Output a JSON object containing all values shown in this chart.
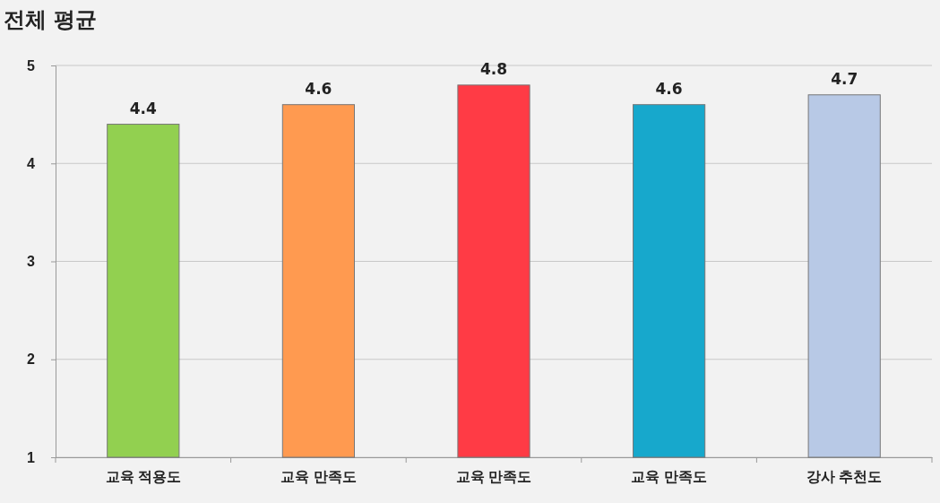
{
  "chart_data": {
    "type": "bar",
    "title": "전체 평균",
    "categories": [
      "교육 적용도",
      "교육 만족도",
      "교육 만족도",
      "교육 만족도",
      "강사 추천도"
    ],
    "values": [
      4.4,
      4.6,
      4.8,
      4.6,
      4.7
    ],
    "colors": [
      "#92d050",
      "#ff9a50",
      "#ff3b45",
      "#17a8cc",
      "#b8c9e6"
    ],
    "ylim": [
      1,
      5
    ],
    "yticks": [
      1,
      2,
      3,
      4,
      5
    ],
    "grid": "y",
    "data_labels": true
  }
}
